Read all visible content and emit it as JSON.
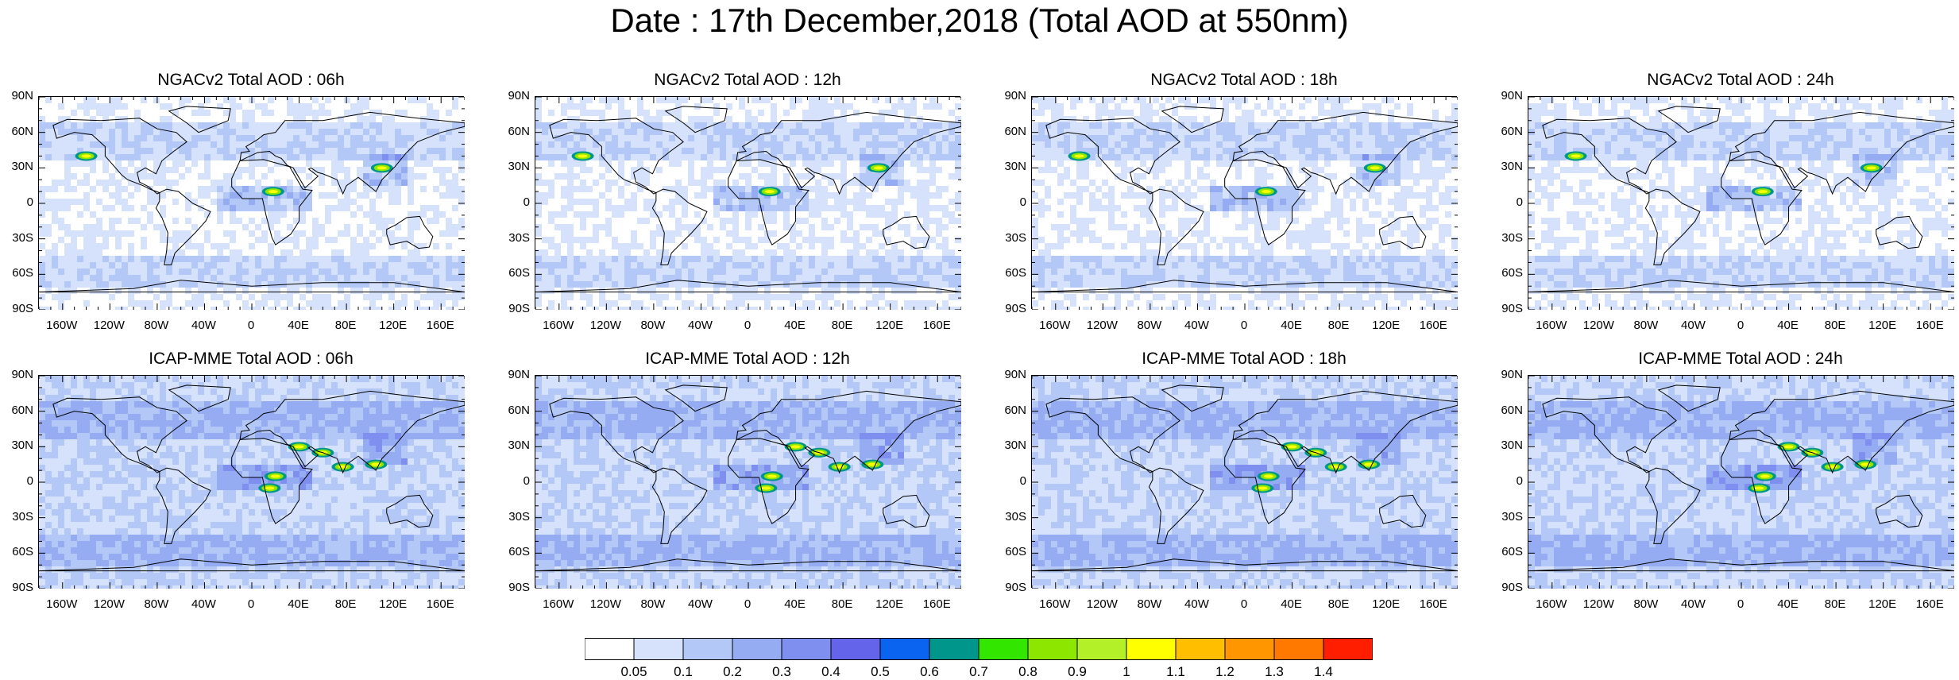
{
  "title": "Date : 17th December,2018 (Total AOD at 550nm)",
  "panels": [
    {
      "title": "NGACv2 Total AOD : 06h",
      "model": "NGACv2"
    },
    {
      "title": "NGACv2 Total AOD : 12h",
      "model": "NGACv2"
    },
    {
      "title": "NGACv2 Total AOD : 18h",
      "model": "NGACv2"
    },
    {
      "title": "NGACv2 Total AOD : 24h",
      "model": "NGACv2"
    },
    {
      "title": "ICAP-MME Total AOD : 06h",
      "model": "ICAP-MME"
    },
    {
      "title": "ICAP-MME Total AOD : 12h",
      "model": "ICAP-MME"
    },
    {
      "title": "ICAP-MME Total AOD : 18h",
      "model": "ICAP-MME"
    },
    {
      "title": "ICAP-MME Total AOD : 24h",
      "model": "ICAP-MME"
    }
  ],
  "lat_labels": [
    "90N",
    "60N",
    "30N",
    "0",
    "30S",
    "60S",
    "90S"
  ],
  "lon_labels": [
    "160W",
    "120W",
    "80W",
    "40W",
    "0",
    "40E",
    "80E",
    "120E",
    "160E"
  ],
  "colorbar": {
    "labels": [
      "0.05",
      "0.1",
      "0.2",
      "0.3",
      "0.4",
      "0.5",
      "0.6",
      "0.7",
      "0.8",
      "0.9",
      "1",
      "1.1",
      "1.2",
      "1.3",
      "1.4"
    ],
    "colors": [
      "#ffffff",
      "#d6e2fb",
      "#b3c8f6",
      "#95acf2",
      "#7f8fef",
      "#6464ea",
      "#0a64f0",
      "#00968c",
      "#32e600",
      "#8ce600",
      "#b4f028",
      "#ffff00",
      "#ffbe00",
      "#ff9600",
      "#ff7800",
      "#ff1e00"
    ]
  }
}
